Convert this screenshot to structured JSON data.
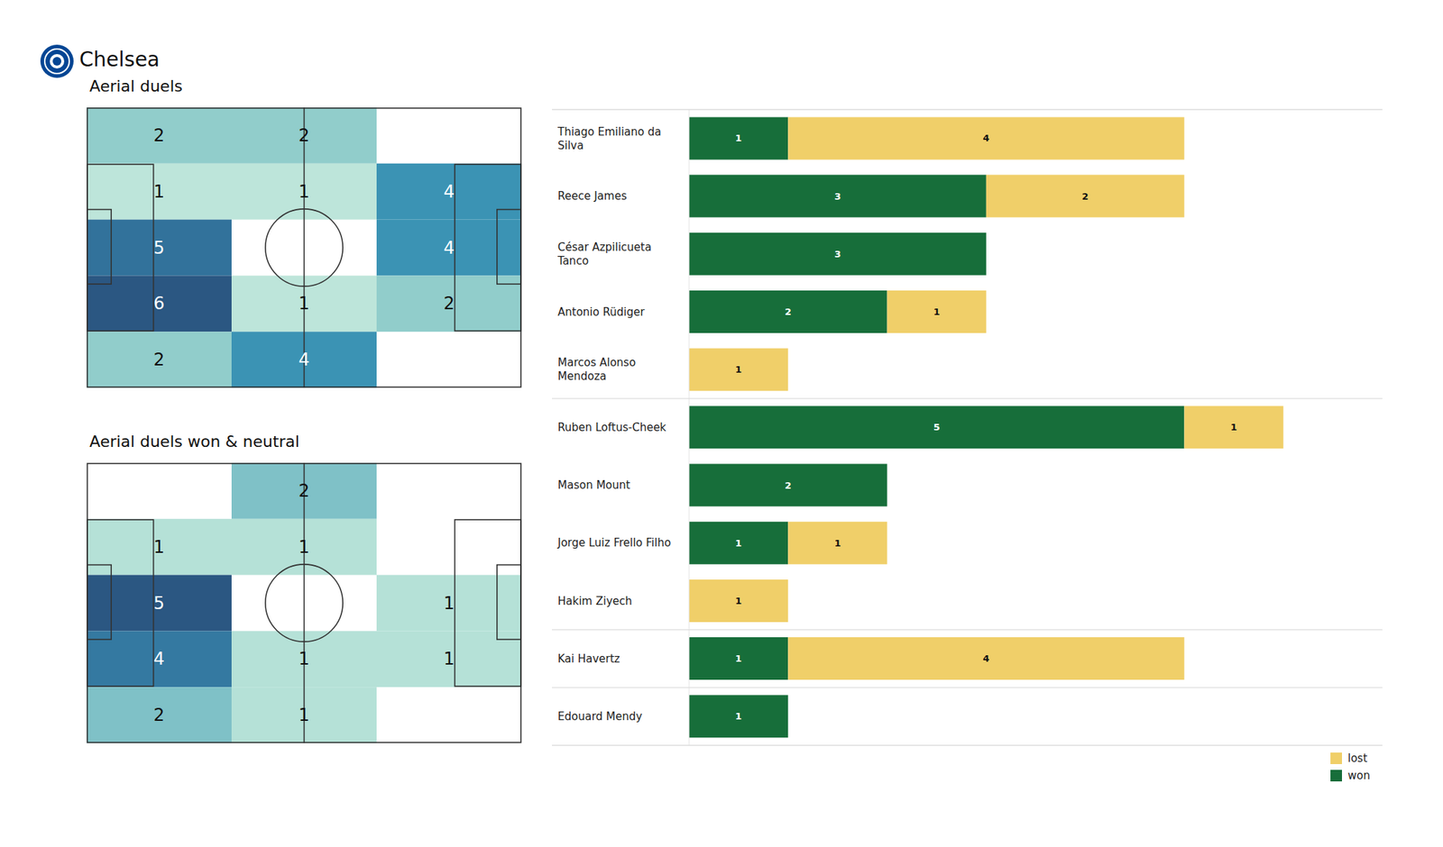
{
  "title": "Chelsea",
  "chart_data": [
    {
      "type": "heatmap",
      "title": "Aerial duels",
      "cells": [
        [
          2,
          2,
          null
        ],
        [
          1,
          1,
          4
        ],
        [
          5,
          null,
          4
        ],
        [
          6,
          1,
          2
        ],
        [
          2,
          4,
          null
        ]
      ],
      "data_labels": true,
      "tick_labels": false
    },
    {
      "type": "heatmap",
      "title": "Aerial duels won & neutral",
      "cells": [
        [
          null,
          2,
          null
        ],
        [
          1,
          1,
          null
        ],
        [
          5,
          null,
          1
        ],
        [
          4,
          1,
          1
        ],
        [
          2,
          1,
          null
        ]
      ],
      "data_labels": true,
      "tick_labels": false
    },
    {
      "type": "bar",
      "orientation": "horizontal",
      "stacked": true,
      "categories": [
        "Thiago Emiliano da Silva",
        "Reece James",
        "César Azpilicueta Tanco",
        "Antonio Rüdiger",
        "Marcos Alonso Mendoza",
        "Ruben Loftus-Cheek",
        "Mason Mount",
        "Jorge Luiz Frello Filho",
        "Hakim Ziyech",
        "Kai Havertz",
        "Edouard Mendy"
      ],
      "series": [
        {
          "name": "won",
          "color": "#176e3a",
          "values": [
            1,
            3,
            3,
            2,
            0,
            5,
            2,
            1,
            0,
            1,
            1
          ]
        },
        {
          "name": "lost",
          "color": "#f0cf69",
          "values": [
            4,
            2,
            0,
            1,
            1,
            1,
            0,
            1,
            1,
            4,
            0
          ]
        }
      ],
      "xlim": [
        0,
        7
      ],
      "xticks": [],
      "tick_labels": "y",
      "data_labels": true,
      "legend": "lower right"
    }
  ]
}
